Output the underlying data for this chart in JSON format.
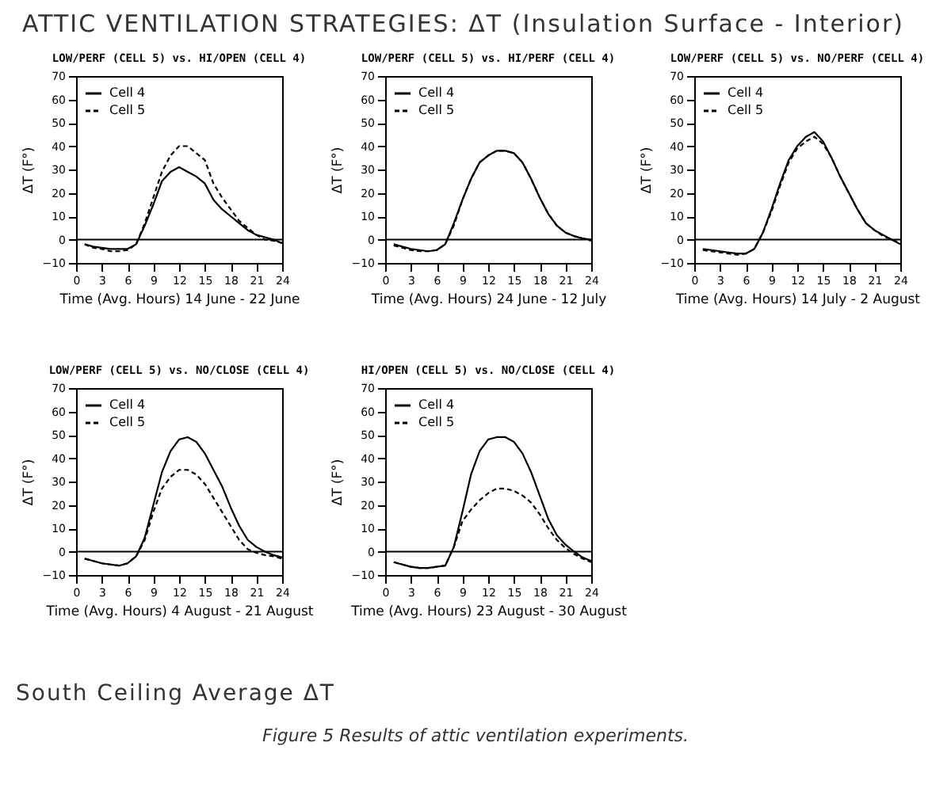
{
  "chart_data": [
    {
      "type": "line",
      "title": "LOW/PERF (CELL 5) vs. HI/OPEN (CELL 4)",
      "xlabel": "Time (Avg. Hours) 14 June - 22 June",
      "ylabel": "ΔT (F°)",
      "annotations": [
        "ATTIC VENTILATION STRATEGIES:  ΔT (Insulation Surface - Interior)"
      ],
      "x": [
        1,
        2,
        3,
        4,
        5,
        6,
        7,
        8,
        9,
        10,
        11,
        12,
        13,
        14,
        15,
        16,
        17,
        18,
        19,
        20,
        21,
        22,
        23,
        24
      ],
      "series": [
        {
          "name": "Cell 4",
          "color": "#000000",
          "line_style": "solid",
          "values": [
            -2,
            -3,
            -3.5,
            -4,
            -4,
            -4,
            -2,
            6,
            15,
            25,
            29,
            31,
            29,
            27,
            24,
            17,
            13,
            10,
            7,
            4,
            2,
            1,
            0,
            -1.5
          ]
        },
        {
          "name": "Cell 5",
          "color": "#000000",
          "line_style": "dashed",
          "values": [
            -2,
            -3.5,
            -4,
            -5,
            -5,
            -4.5,
            -2,
            7,
            18,
            29,
            36,
            40,
            40,
            37,
            34,
            24,
            18,
            13,
            8,
            5,
            2,
            0,
            -0.5,
            -1.5
          ]
        }
      ],
      "xlim": [
        0,
        24
      ],
      "xticks": [
        0,
        3,
        6,
        9,
        12,
        15,
        18,
        21,
        24
      ],
      "ylim": [
        -10,
        70
      ],
      "yticks": [
        -10,
        0,
        10,
        20,
        30,
        40,
        50,
        60,
        70
      ],
      "ref_lines": [
        {
          "axis": "y",
          "value": 0,
          "color": "#000000"
        }
      ],
      "legend": "top left"
    },
    {
      "type": "line",
      "title": "LOW/PERF (CELL 5) vs. HI/PERF (CELL 4)",
      "xlabel": "Time (Avg. Hours) 24 June - 12 July",
      "ylabel": "ΔT (F°)",
      "x": [
        1,
        2,
        3,
        4,
        5,
        6,
        7,
        8,
        9,
        10,
        11,
        12,
        13,
        14,
        15,
        16,
        17,
        18,
        19,
        20,
        21,
        22,
        23,
        24
      ],
      "series": [
        {
          "name": "Cell 4",
          "color": "#000000",
          "line_style": "solid",
          "values": [
            -2,
            -3,
            -4,
            -4.5,
            -5,
            -4.5,
            -2,
            7,
            17,
            26,
            33,
            36,
            38,
            38,
            37,
            33,
            26,
            18,
            11,
            6,
            3,
            1.5,
            0.5,
            0
          ]
        },
        {
          "name": "Cell 5",
          "color": "#000000",
          "line_style": "dashed",
          "values": [
            -2.5,
            -3.5,
            -4.5,
            -5,
            -5,
            -4.5,
            -2,
            6,
            17,
            26,
            33,
            36,
            38,
            38,
            37,
            33,
            26,
            18,
            11,
            6,
            3,
            1.5,
            0.5,
            -0.5
          ]
        }
      ],
      "xlim": [
        0,
        24
      ],
      "xticks": [
        0,
        3,
        6,
        9,
        12,
        15,
        18,
        21,
        24
      ],
      "ylim": [
        -10,
        70
      ],
      "yticks": [
        -10,
        0,
        10,
        20,
        30,
        40,
        50,
        60,
        70
      ],
      "ref_lines": [
        {
          "axis": "y",
          "value": 0,
          "color": "#000000"
        }
      ],
      "legend": "top left"
    },
    {
      "type": "line",
      "title": "LOW/PERF (CELL 5) vs. NO/PERF (CELL 4)",
      "xlabel": "Time (Avg. Hours) 14 July - 2 August",
      "ylabel": "ΔT (F°)",
      "x": [
        1,
        2,
        3,
        4,
        5,
        6,
        7,
        8,
        9,
        10,
        11,
        12,
        13,
        14,
        15,
        16,
        17,
        18,
        19,
        20,
        21,
        22,
        23,
        24
      ],
      "series": [
        {
          "name": "Cell 4",
          "color": "#000000",
          "line_style": "solid",
          "values": [
            -4,
            -4.5,
            -5,
            -5.5,
            -6,
            -6,
            -4,
            3,
            13,
            24,
            34,
            40,
            44,
            46,
            42,
            35,
            27,
            20,
            13,
            7,
            4,
            2,
            0,
            -2
          ]
        },
        {
          "name": "Cell 5",
          "color": "#000000",
          "line_style": "dashed",
          "values": [
            -4.5,
            -5,
            -5.5,
            -6,
            -6.5,
            -6,
            -4,
            3,
            12,
            23,
            33,
            39,
            42,
            44,
            41,
            35,
            27,
            20,
            13,
            7,
            4,
            1.5,
            0,
            -1.5
          ]
        }
      ],
      "xlim": [
        0,
        24
      ],
      "xticks": [
        0,
        3,
        6,
        9,
        12,
        15,
        18,
        21,
        24
      ],
      "ylim": [
        -10,
        70
      ],
      "yticks": [
        -10,
        0,
        10,
        20,
        30,
        40,
        50,
        60,
        70
      ],
      "ref_lines": [
        {
          "axis": "y",
          "value": 0,
          "color": "#000000"
        }
      ],
      "legend": "top left"
    },
    {
      "type": "line",
      "title": "LOW/PERF (CELL 5) vs. NO/CLOSE (CELL 4)",
      "xlabel": "Time (Avg. Hours) 4 August - 21 August",
      "ylabel": "ΔT (F°)",
      "x": [
        1,
        2,
        3,
        4,
        5,
        6,
        7,
        8,
        9,
        10,
        11,
        12,
        13,
        14,
        15,
        16,
        17,
        18,
        19,
        20,
        21,
        22,
        23,
        24
      ],
      "series": [
        {
          "name": "Cell 4",
          "color": "#000000",
          "line_style": "solid",
          "values": [
            -3,
            -4,
            -5,
            -5.5,
            -6,
            -5,
            -2,
            6,
            20,
            34,
            43,
            48,
            49,
            47,
            42,
            35,
            28,
            19,
            11,
            5,
            2,
            0,
            -1.5,
            -2.5
          ]
        },
        {
          "name": "Cell 5",
          "color": "#000000",
          "line_style": "dashed",
          "values": [
            -3,
            -4,
            -5,
            -5.5,
            -6,
            -5,
            -2,
            5,
            17,
            27,
            32,
            35,
            35,
            33,
            29,
            23,
            17,
            11,
            5,
            1,
            -0.5,
            -1.5,
            -2,
            -3
          ]
        }
      ],
      "xlim": [
        0,
        24
      ],
      "xticks": [
        0,
        3,
        6,
        9,
        12,
        15,
        18,
        21,
        24
      ],
      "ylim": [
        -10,
        70
      ],
      "yticks": [
        -10,
        0,
        10,
        20,
        30,
        40,
        50,
        60,
        70
      ],
      "ref_lines": [
        {
          "axis": "y",
          "value": 0,
          "color": "#000000"
        }
      ],
      "legend": "top left"
    },
    {
      "type": "line",
      "title": "HI/OPEN (CELL 5) vs. NO/CLOSE (CELL 4)",
      "xlabel": "Time (Avg. Hours) 23 August - 30 August",
      "ylabel": "ΔT (F°)",
      "annotations": [
        "South Ceiling Average ΔT",
        "Figure 5  Results of attic ventilation experiments."
      ],
      "x": [
        1,
        2,
        3,
        4,
        5,
        6,
        7,
        8,
        9,
        10,
        11,
        12,
        13,
        14,
        15,
        16,
        17,
        18,
        19,
        20,
        21,
        22,
        23,
        24
      ],
      "series": [
        {
          "name": "Cell 4",
          "color": "#000000",
          "line_style": "solid",
          "values": [
            -4.5,
            -5.5,
            -6.5,
            -7,
            -7,
            -6.5,
            -6,
            2,
            17,
            33,
            43,
            48,
            49,
            49,
            47,
            42,
            34,
            24,
            14,
            7,
            3,
            0,
            -2.5,
            -4
          ]
        },
        {
          "name": "Cell 5",
          "color": "#000000",
          "line_style": "dashed",
          "values": [
            -4.5,
            -5.5,
            -6.5,
            -7,
            -7,
            -6.5,
            -6,
            2,
            13,
            18,
            22,
            25,
            27,
            27,
            26,
            24,
            21,
            16,
            10,
            5,
            1.5,
            -1,
            -3,
            -4.5
          ]
        }
      ],
      "xlim": [
        0,
        24
      ],
      "xticks": [
        0,
        3,
        6,
        9,
        12,
        15,
        18,
        21,
        24
      ],
      "ylim": [
        -10,
        70
      ],
      "yticks": [
        -10,
        0,
        10,
        20,
        30,
        40,
        50,
        60,
        70
      ],
      "ref_lines": [
        {
          "axis": "y",
          "value": 0,
          "color": "#000000"
        }
      ],
      "legend": "top left"
    }
  ]
}
